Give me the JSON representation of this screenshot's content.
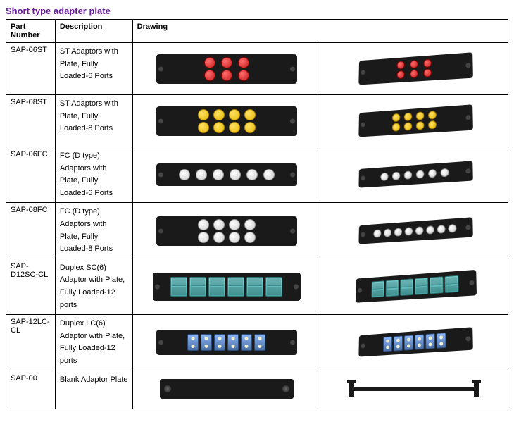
{
  "title": "Short type adapter plate",
  "title_color": "#6a1b9a",
  "headers": {
    "part": "Part Number",
    "desc": "Description",
    "drawing": "Drawing"
  },
  "rows": [
    {
      "part": "SAP-06ST",
      "desc": "ST Adaptors with Plate, Fully Loaded-6 Ports",
      "type": "st6",
      "color": "#c41e1e"
    },
    {
      "part": "SAP-08ST",
      "desc": "ST Adaptors with Plate, Fully Loaded-8 Ports",
      "type": "st8",
      "color": "#e6b800"
    },
    {
      "part": "SAP-06FC",
      "desc": "FC (D type) Adaptors with Plate, Fully Loaded-6 Ports",
      "type": "fc6",
      "color": "#e0e0e0"
    },
    {
      "part": "SAP-08FC",
      "desc": "FC (D type) Adaptors with Plate, Fully Loaded-8 Ports",
      "type": "fc8",
      "color": "#e0e0e0"
    },
    {
      "part": "SAP-D12SC-CL",
      "desc": "Duplex SC(6) Adaptor with Plate, Fully Loaded-12 ports",
      "type": "sc12",
      "color": "#5db8b8"
    },
    {
      "part": "SAP-12LC-CL",
      "desc": "Duplex LC(6) Adaptor with Plate, Fully Loaded-12 ports",
      "type": "lc12",
      "color": "#5a7fb5"
    },
    {
      "part": "SAP-00",
      "desc": "Blank Adaptor Plate",
      "type": "blank",
      "color": "#1a1a1a"
    }
  ],
  "plate_bg": "#1a1a1a"
}
